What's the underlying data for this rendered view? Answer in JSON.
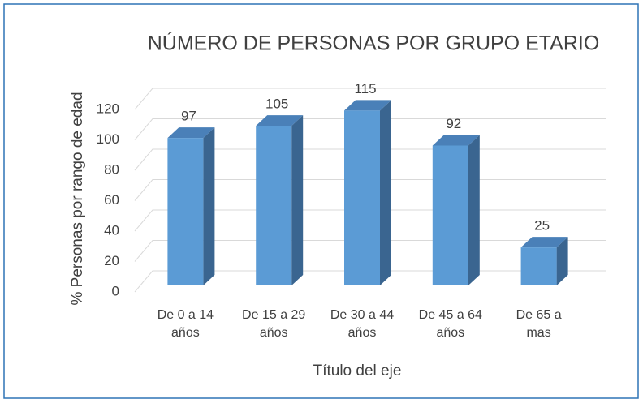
{
  "chart_data": {
    "type": "bar",
    "title": "NÚMERO DE PERSONAS POR GRUPO ETARIO",
    "categories": [
      "De 0 a 14 años",
      "De 15 a 29 años",
      "De 30 a 44 años",
      "De 45 a 64 años",
      "De 65 a mas"
    ],
    "values": [
      97,
      105,
      115,
      92,
      25
    ],
    "color": "#5b9bd5",
    "ylim": [
      0,
      120
    ],
    "yticks": [
      0,
      20,
      40,
      60,
      80,
      100,
      120
    ],
    "grid": true,
    "y_label": "% Personas por rango de edad",
    "x_label": "Título del eje"
  }
}
